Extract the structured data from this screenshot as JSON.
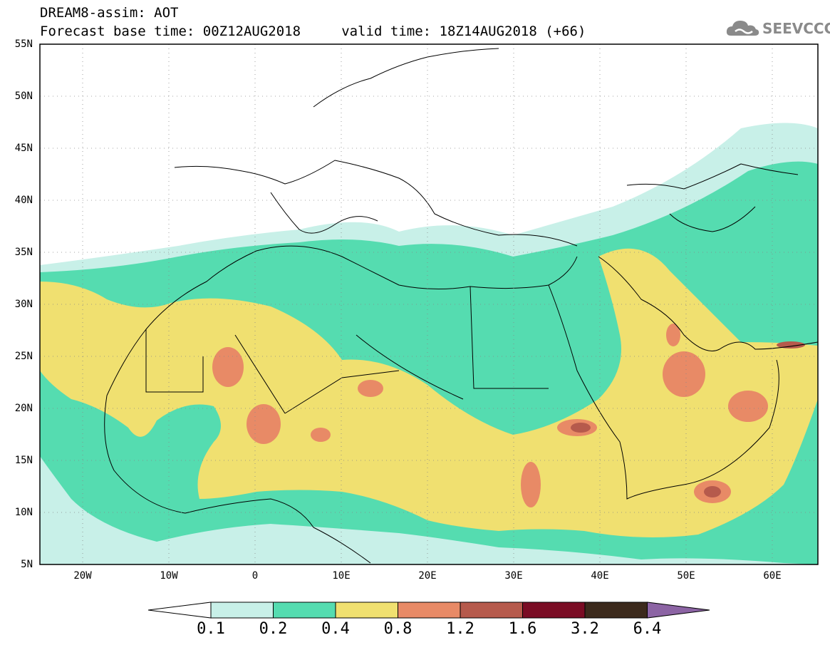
{
  "header": {
    "title_line1": "DREAM8-assim: AOT",
    "title_line2": "Forecast base time: 00Z12AUG2018     valid time: 18Z14AUG2018 (+66)",
    "logo_text": "SEEVCCC"
  },
  "map": {
    "latitude_labels": [
      "55N",
      "50N",
      "45N",
      "40N",
      "35N",
      "30N",
      "25N",
      "20N",
      "15N",
      "10N",
      "5N"
    ],
    "longitude_labels": [
      "20W",
      "10W",
      "0",
      "10E",
      "20E",
      "30E",
      "40E",
      "50E",
      "60E"
    ]
  },
  "colorbar": {
    "labels": [
      "0.1",
      "0.2",
      "0.4",
      "0.8",
      "1.2",
      "1.6",
      "3.2",
      "6.4"
    ],
    "colors": [
      "#ffffff",
      "#c8f0e8",
      "#55dcb0",
      "#f0e070",
      "#e88a66",
      "#b65a4c",
      "#7a0c24",
      "#3c2a1c",
      "#8c64a4"
    ]
  }
}
